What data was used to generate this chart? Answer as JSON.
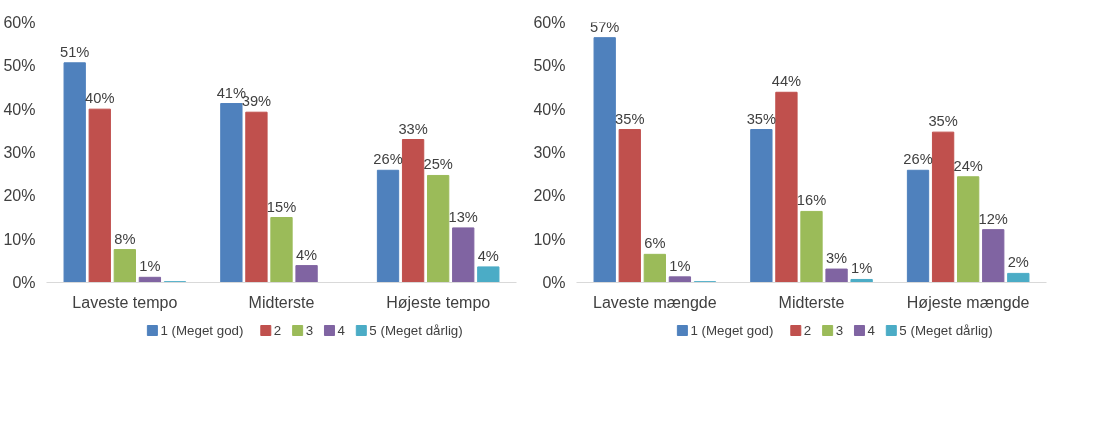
{
  "chart_data": [
    {
      "type": "bar",
      "categories": [
        "Laveste tempo",
        "Midterste",
        "Højeste tempo"
      ],
      "ylim": [
        0,
        60
      ],
      "yticks": [
        {
          "value": 0,
          "label": "0%"
        },
        {
          "value": 10,
          "label": "10%"
        },
        {
          "value": 20,
          "label": "20%"
        },
        {
          "value": 30,
          "label": "30%"
        },
        {
          "value": 40,
          "label": "40%"
        },
        {
          "value": 50,
          "label": "50%"
        },
        {
          "value": 60,
          "label": "60%"
        }
      ],
      "legend": "bottom",
      "series": [
        {
          "name": "1 (Meget god)",
          "color": "#4f81bd",
          "values": [
            50.7,
            41.3,
            25.9
          ],
          "value_labels": [
            "51%",
            "41%",
            "26%"
          ]
        },
        {
          "name": "2",
          "color": "#c0504d",
          "values": [
            40.0,
            39.3,
            33.0
          ],
          "value_labels": [
            "40%",
            "39%",
            "33%"
          ]
        },
        {
          "name": "3",
          "color": "#9bbb59",
          "values": [
            7.6,
            15.0,
            24.7
          ],
          "value_labels": [
            "8%",
            "15%",
            "25%"
          ]
        },
        {
          "name": "4",
          "color": "#8064a2",
          "values": [
            1.2,
            3.9,
            12.6
          ],
          "value_labels": [
            "1%",
            "4%",
            "13%"
          ]
        },
        {
          "name": "5 (Meget dårlig)",
          "color": "#4bacc6",
          "values": [
            0.2,
            0,
            3.6
          ],
          "value_labels": [
            null,
            null,
            "4%"
          ]
        }
      ]
    },
    {
      "type": "bar",
      "categories": [
        "Laveste mængde",
        "Midterste",
        "Højeste mængde"
      ],
      "ylim": [
        0,
        60
      ],
      "yticks": [
        {
          "value": 0,
          "label": "0%"
        },
        {
          "value": 10,
          "label": "10%"
        },
        {
          "value": 20,
          "label": "20%"
        },
        {
          "value": 30,
          "label": "30%"
        },
        {
          "value": 40,
          "label": "40%"
        },
        {
          "value": 50,
          "label": "50%"
        },
        {
          "value": 60,
          "label": "60%"
        }
      ],
      "legend": "bottom",
      "series": [
        {
          "name": "1 (Meget god)",
          "color": "#4f81bd",
          "values": [
            56.5,
            35.3,
            25.9
          ],
          "value_labels": [
            "57%",
            "35%",
            "26%"
          ]
        },
        {
          "name": "2",
          "color": "#c0504d",
          "values": [
            35.3,
            43.9,
            34.7
          ],
          "value_labels": [
            "35%",
            "44%",
            "35%"
          ]
        },
        {
          "name": "3",
          "color": "#9bbb59",
          "values": [
            6.5,
            16.4,
            24.4
          ],
          "value_labels": [
            "6%",
            "16%",
            "24%"
          ]
        },
        {
          "name": "4",
          "color": "#8064a2",
          "values": [
            1.3,
            3.1,
            12.2
          ],
          "value_labels": [
            "1%",
            "3%",
            "12%"
          ]
        },
        {
          "name": "5 (Meget dårlig)",
          "color": "#4bacc6",
          "values": [
            0.2,
            0.7,
            2.1
          ],
          "value_labels": [
            null,
            "1%",
            "2%"
          ]
        }
      ]
    }
  ]
}
